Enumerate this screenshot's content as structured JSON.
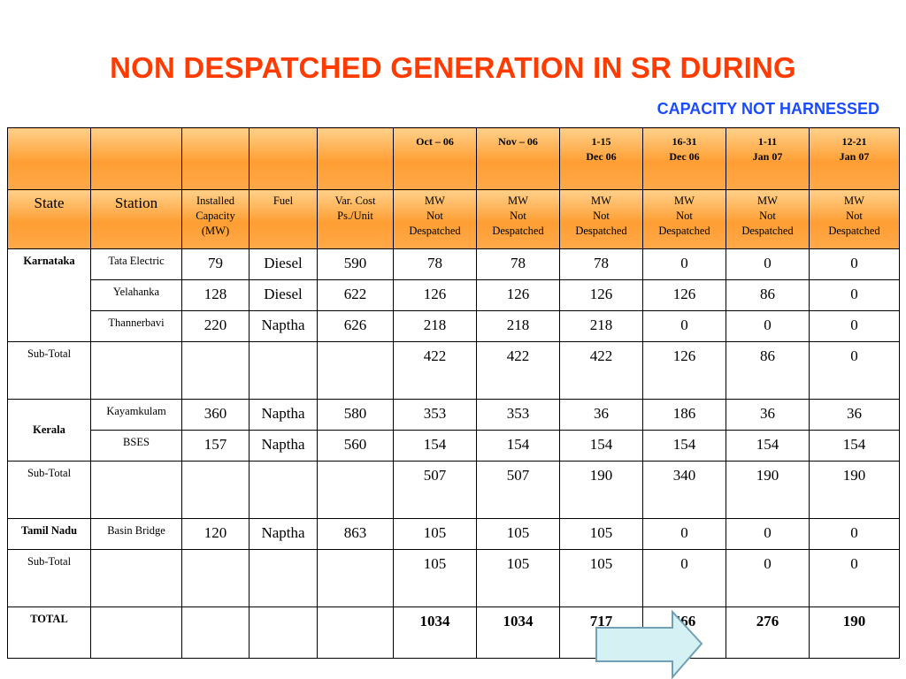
{
  "title": "NON DESPATCHED GENERATION IN SR DURING",
  "subtitle": "CAPACITY NOT HARNESSED",
  "header_periods": [
    {
      "line1": "Oct – 06",
      "line2": ""
    },
    {
      "line1": "Nov – 06",
      "line2": ""
    },
    {
      "line1": "1-15",
      "line2": "Dec 06"
    },
    {
      "line1": "16-31",
      "line2": "Dec 06"
    },
    {
      "line1": "1-11",
      "line2": "Jan 07"
    },
    {
      "line1": "12-21",
      "line2": "Jan 07"
    }
  ],
  "columns": {
    "state": "State",
    "station": "Station",
    "capacity": [
      "Installed",
      "Capacity",
      "(MW)"
    ],
    "fuel": "Fuel",
    "var_cost": [
      "Var. Cost",
      "Ps./Unit"
    ],
    "mw": [
      "MW",
      "Not",
      "Despatched"
    ]
  },
  "rows": [
    {
      "state": "Karnataka",
      "station": "Tata Electric",
      "capacity": "79",
      "fuel": "Diesel",
      "cost": "590",
      "values": [
        "78",
        "78",
        "78",
        "0",
        "0",
        "0"
      ]
    },
    {
      "state": "",
      "station": "Yelahanka",
      "capacity": "128",
      "fuel": "Diesel",
      "cost": "622",
      "values": [
        "126",
        "126",
        "126",
        "126",
        "86",
        "0"
      ]
    },
    {
      "state": "",
      "station": "Thannerbavi",
      "capacity": "220",
      "fuel": "Naptha",
      "cost": "626",
      "values": [
        "218",
        "218",
        "218",
        "0",
        "0",
        "0"
      ]
    },
    {
      "state": "Sub-Total",
      "station": "",
      "capacity": "",
      "fuel": "",
      "cost": "",
      "values": [
        "422",
        "422",
        "422",
        "126",
        "86",
        "0"
      ]
    },
    {
      "state": "Kerala",
      "station": "Kayamkulam",
      "capacity": "360",
      "fuel": "Naptha",
      "cost": "580",
      "values": [
        "353",
        "353",
        "36",
        "186",
        "36",
        "36"
      ]
    },
    {
      "state": "",
      "station": "BSES",
      "capacity": "157",
      "fuel": "Naptha",
      "cost": "560",
      "values": [
        "154",
        "154",
        "154",
        "154",
        "154",
        "154"
      ]
    },
    {
      "state": "Sub-Total",
      "station": "",
      "capacity": "",
      "fuel": "",
      "cost": "",
      "values": [
        "507",
        "507",
        "190",
        "340",
        "190",
        "190"
      ]
    },
    {
      "state": "Tamil Nadu",
      "station": "Basin Bridge",
      "capacity": "120",
      "fuel": "Naptha",
      "cost": "863",
      "values": [
        "105",
        "105",
        "105",
        "0",
        "0",
        "0"
      ]
    },
    {
      "state": "Sub-Total",
      "station": "",
      "capacity": "",
      "fuel": "",
      "cost": "",
      "values": [
        "105",
        "105",
        "105",
        "0",
        "0",
        "0"
      ]
    },
    {
      "state": "TOTAL",
      "station": "",
      "capacity": "",
      "fuel": "",
      "cost": "",
      "values": [
        "1034",
        "1034",
        "717",
        "466",
        "276",
        "190"
      ]
    }
  ],
  "colors": {
    "title": "#ff3b00",
    "subtitle": "#1a4bff",
    "header_fill": "#ff9e33",
    "arrow_fill": "#d6f1f3",
    "arrow_stroke": "#6fa0b5"
  },
  "decor": {
    "arrow_icon": "right-arrow-icon"
  }
}
